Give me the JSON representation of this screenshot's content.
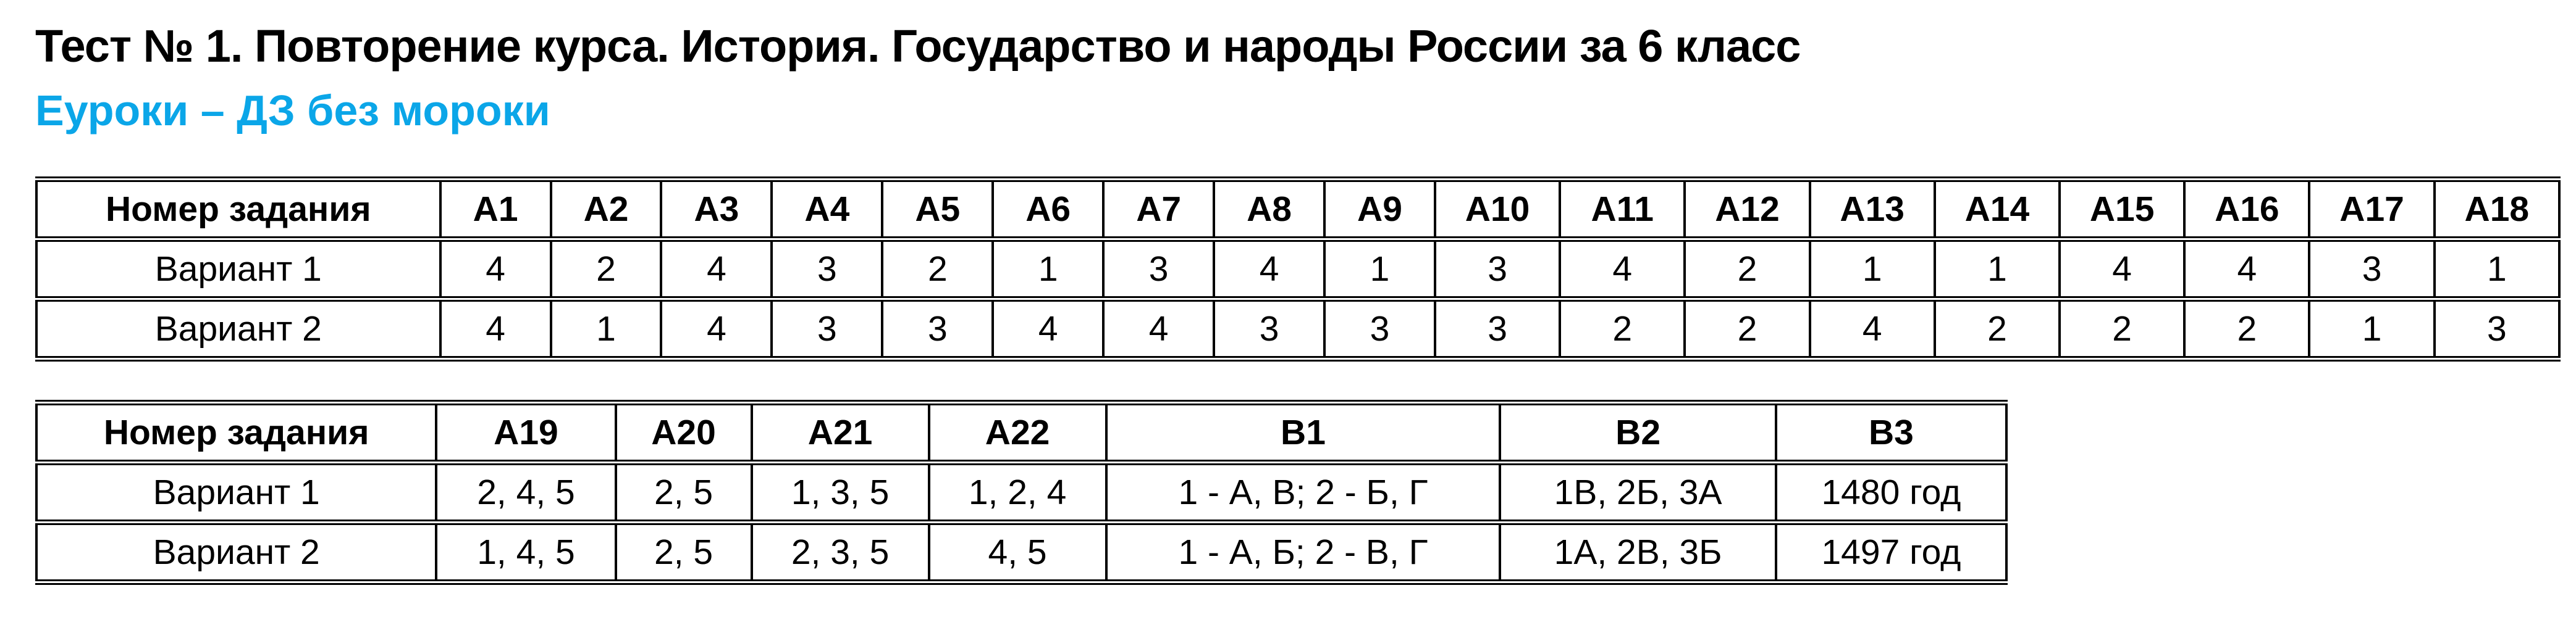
{
  "page": {
    "title": "Тест № 1. Повторение курса. История. Государство и народы России за 6 класс",
    "subtitle": "Еуроки – ДЗ без мороки"
  },
  "colors": {
    "accent_cyan": "#0ba6e8",
    "text": "#000000",
    "table_border": "#000000"
  },
  "tables": {
    "table1": {
      "name": "answers-a1-a18",
      "header": [
        "Номер задания",
        "А1",
        "А2",
        "А3",
        "А4",
        "А5",
        "А6",
        "А7",
        "А8",
        "А9",
        "А10",
        "А11",
        "А12",
        "А13",
        "А14",
        "А15",
        "А16",
        "А17",
        "А18"
      ],
      "rows": [
        {
          "label": "Вариант 1",
          "values": [
            "4",
            "2",
            "4",
            "3",
            "2",
            "1",
            "3",
            "4",
            "1",
            "3",
            "4",
            "2",
            "1",
            "1",
            "4",
            "4",
            "3",
            "1"
          ]
        },
        {
          "label": "Вариант 2",
          "values": [
            "4",
            "1",
            "4",
            "3",
            "3",
            "4",
            "4",
            "3",
            "3",
            "3",
            "2",
            "2",
            "4",
            "2",
            "2",
            "2",
            "1",
            "3"
          ]
        }
      ]
    },
    "table2": {
      "name": "answers-a19-b3",
      "header": [
        "Номер задания",
        "А19",
        "А20",
        "А21",
        "А22",
        "В1",
        "В2",
        "В3"
      ],
      "rows": [
        {
          "label": "Вариант 1",
          "values": [
            "2, 4, 5",
            "2, 5",
            "1, 3, 5",
            "1, 2, 4",
            "1 - А, В; 2 - Б, Г",
            "1В, 2Б, 3А",
            "1480 год"
          ]
        },
        {
          "label": "Вариант 2",
          "values": [
            "1, 4, 5",
            "2, 5",
            "2, 3, 5",
            "4, 5",
            "1 - А, Б; 2 - В, Г",
            "1А, 2В, 3Б",
            "1497 год"
          ]
        }
      ]
    }
  }
}
